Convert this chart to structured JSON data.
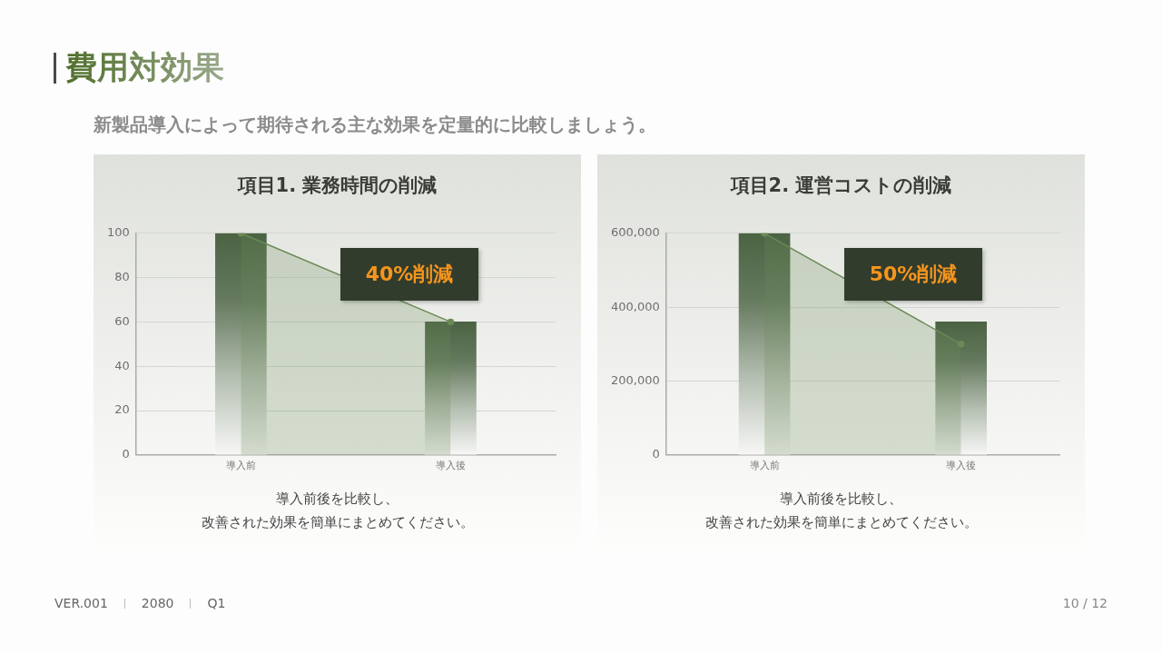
{
  "chart_data": [
    {
      "type": "other",
      "title": "費用対効果",
      "subtitle": "新製品導入によって期待される主な効果を定量的に比較しましょう。"
    },
    {
      "type": "bar",
      "title": "項目1. 業務時間の削減",
      "categories": [
        "導入前",
        "導入後"
      ],
      "series": [
        {
          "type": "bar",
          "color": "#4b6343",
          "values": [
            100,
            60
          ]
        },
        {
          "type": "area",
          "color": "#6b8a57",
          "values": [
            100,
            60
          ]
        }
      ],
      "ylim": [
        0,
        100
      ],
      "yticks": [
        0,
        20,
        40,
        60,
        80,
        100
      ],
      "grid": "y",
      "marker": "circle",
      "annotations": [
        "40%削減",
        "導入前後を比較し、",
        "改善された効果を簡単にまとめてください。"
      ]
    },
    {
      "type": "bar",
      "title": "項目2. 運営コストの削減",
      "categories": [
        "導入前",
        "導入後"
      ],
      "series": [
        {
          "type": "bar",
          "color": "#4b6343",
          "values": [
            600000,
            360000
          ]
        },
        {
          "type": "area",
          "color": "#6b8a57",
          "values": [
            600000,
            300000
          ]
        }
      ],
      "ylim": [
        0,
        600000
      ],
      "yticks": [
        0,
        {
          "value": 200000,
          "label": "200,000"
        },
        {
          "value": 400000,
          "label": "400,000"
        },
        {
          "value": 600000,
          "label": "600,000"
        }
      ],
      "grid": "y",
      "marker": "circle",
      "annotations": [
        "50%削減",
        "導入前後を比較し、",
        "改善された効果を簡単にまとめてください。"
      ]
    },
    {
      "type": "other",
      "annotations": [
        "VER.001",
        "2080",
        "Q1",
        "10 / 12"
      ]
    }
  ]
}
